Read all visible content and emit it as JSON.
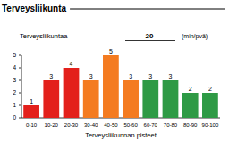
{
  "chart_data": {
    "type": "bar",
    "title": "Terveysliikunta",
    "annotations": [
      "Terveysliikuntaa",
      20,
      "(min/pvä)"
    ],
    "x_label": "Terveysliikunnan pisteet",
    "categories": [
      "0-10",
      "10-20",
      "20-30",
      "30-40",
      "40-50",
      "50-60",
      "60-70",
      "70-80",
      "80-90",
      "90-100"
    ],
    "values": [
      1,
      3,
      4,
      3,
      5,
      3,
      3,
      3,
      2,
      2
    ],
    "colors": [
      "#e3201b",
      "#e3201b",
      "#e3201b",
      "#f47b20",
      "#f47b20",
      "#f47b20",
      "#2e9a45",
      "#2e9a45",
      "#2e9a45",
      "#2e9a45"
    ],
    "ylim": [
      0,
      5
    ],
    "yticks": [
      0,
      1,
      2,
      3,
      4,
      5
    ],
    "data_labels": true
  }
}
